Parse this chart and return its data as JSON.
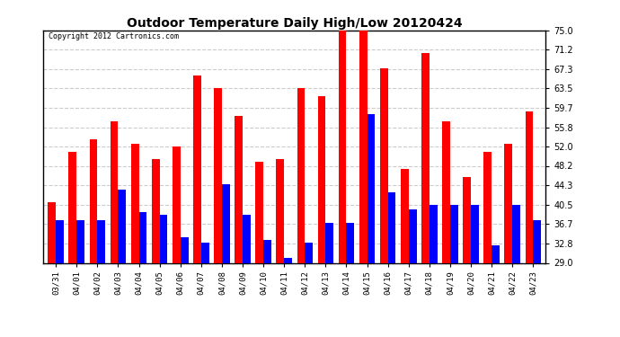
{
  "title": "Outdoor Temperature Daily High/Low 20120424",
  "copyright_text": "Copyright 2012 Cartronics.com",
  "dates": [
    "03/31",
    "04/01",
    "04/02",
    "04/03",
    "04/04",
    "04/05",
    "04/06",
    "04/07",
    "04/08",
    "04/09",
    "04/10",
    "04/11",
    "04/12",
    "04/13",
    "04/14",
    "04/15",
    "04/16",
    "04/17",
    "04/18",
    "04/19",
    "04/20",
    "04/21",
    "04/22",
    "04/23"
  ],
  "highs": [
    41.0,
    51.0,
    53.5,
    57.0,
    52.5,
    49.5,
    52.0,
    66.0,
    63.5,
    58.0,
    49.0,
    49.5,
    63.5,
    62.0,
    75.0,
    75.0,
    67.5,
    47.5,
    70.5,
    57.0,
    46.0,
    51.0,
    52.5,
    59.0
  ],
  "lows": [
    37.5,
    37.5,
    37.5,
    43.5,
    39.0,
    38.5,
    34.0,
    33.0,
    44.5,
    38.5,
    33.5,
    30.0,
    33.0,
    37.0,
    37.0,
    58.5,
    43.0,
    39.5,
    40.5,
    40.5,
    40.5,
    32.5,
    40.5,
    37.5
  ],
  "high_color": "#ff0000",
  "low_color": "#0000ff",
  "bg_color": "#ffffff",
  "grid_color": "#cccccc",
  "yticks": [
    29.0,
    32.8,
    36.7,
    40.5,
    44.3,
    48.2,
    52.0,
    55.8,
    59.7,
    63.5,
    67.3,
    71.2,
    75.0
  ],
  "ymin": 29.0,
  "ymax": 75.0,
  "title_fontsize": 10,
  "bar_width": 0.38
}
